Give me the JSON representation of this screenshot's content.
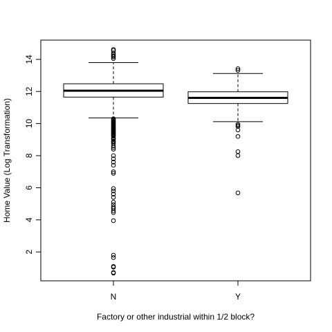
{
  "chart_data": {
    "type": "boxplot",
    "xlabel": "Factory or other industrial within 1/2 block?",
    "ylabel": "Home Value (Log Transformation)",
    "ylim": [
      0.2,
      15.2
    ],
    "yticks": [
      2,
      4,
      6,
      8,
      10,
      12,
      14
    ],
    "categories": [
      "N",
      "Y"
    ],
    "groups": [
      {
        "name": "N",
        "lower_whisker": 10.35,
        "q1": 11.65,
        "median": 12.05,
        "q3": 12.48,
        "upper_whisker": 13.8,
        "outliers": [
          14.62,
          14.55,
          14.4,
          14.3,
          14.22,
          14.15,
          14.05,
          10.3,
          10.25,
          10.2,
          10.15,
          10.1,
          10.05,
          10.0,
          9.95,
          9.9,
          9.85,
          9.8,
          9.75,
          9.7,
          9.65,
          9.6,
          9.55,
          9.5,
          9.45,
          9.4,
          9.35,
          9.3,
          9.25,
          9.2,
          9.1,
          9.05,
          9.0,
          8.9,
          8.85,
          8.75,
          8.6,
          8.5,
          8.4,
          8.0,
          7.8,
          7.6,
          7.4,
          7.0,
          6.9,
          5.95,
          5.8,
          5.6,
          5.4,
          5.1,
          4.95,
          4.8,
          4.7,
          4.55,
          4.45,
          3.95,
          1.8,
          1.65,
          1.1,
          1.05,
          0.72,
          0.68
        ]
      },
      {
        "name": "Y",
        "lower_whisker": 10.12,
        "q1": 11.25,
        "median": 11.6,
        "q3": 11.98,
        "upper_whisker": 13.12,
        "outliers": [
          13.42,
          13.32,
          9.95,
          9.88,
          9.82,
          9.6,
          9.2,
          8.25,
          8.0,
          5.68
        ]
      }
    ]
  }
}
